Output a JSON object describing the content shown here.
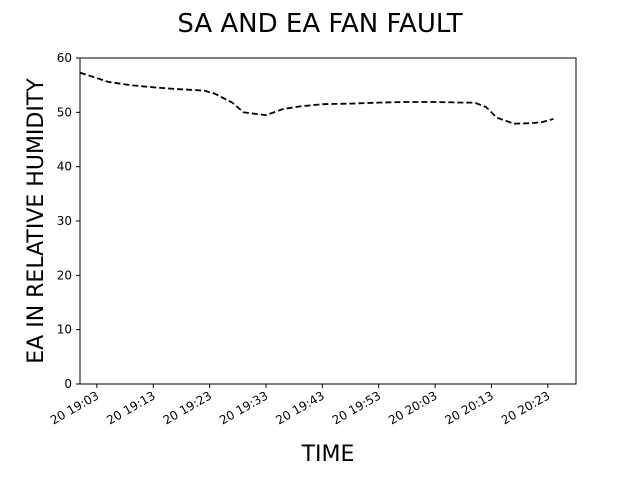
{
  "chart_data": {
    "type": "line",
    "title": "SA AND EA FAN FAULT",
    "xlabel": "TIME",
    "ylabel": "EA IN RELATIVE HUMIDITY",
    "ylim": [
      0,
      60
    ],
    "yticks": [
      0,
      10,
      20,
      30,
      40,
      50,
      60
    ],
    "xlim": [
      "19:00",
      "20:28"
    ],
    "xticks": [
      {
        "t": "19:03",
        "label": "20 19:03"
      },
      {
        "t": "19:13",
        "label": "20 19:13"
      },
      {
        "t": "19:23",
        "label": "20 19:23"
      },
      {
        "t": "19:33",
        "label": "20 19:33"
      },
      {
        "t": "19:43",
        "label": "20 19:43"
      },
      {
        "t": "19:53",
        "label": "20 19:53"
      },
      {
        "t": "20:03",
        "label": "20 20:03"
      },
      {
        "t": "20:13",
        "label": "20 20:13"
      },
      {
        "t": "20:23",
        "label": "20 20:23"
      }
    ],
    "grid": false,
    "series": [
      {
        "line_style": "dashed",
        "color": "#000000",
        "x": [
          "19:00",
          "19:03",
          "19:05",
          "19:09",
          "19:13",
          "19:17",
          "19:22",
          "19:24",
          "19:27",
          "19:29",
          "19:32",
          "19:33",
          "19:36",
          "19:39",
          "19:43",
          "19:48",
          "19:53",
          "19:58",
          "20:03",
          "20:08",
          "20:10",
          "20:12",
          "20:14",
          "20:17",
          "20:20",
          "20:22",
          "20:24"
        ],
        "y": [
          57.3,
          56.3,
          55.6,
          55.0,
          54.6,
          54.3,
          54.0,
          53.4,
          51.8,
          50.0,
          49.6,
          49.5,
          50.6,
          51.1,
          51.5,
          51.6,
          51.8,
          51.9,
          51.9,
          51.8,
          51.8,
          51.0,
          49.0,
          47.9,
          48.0,
          48.2,
          48.8
        ]
      }
    ]
  }
}
